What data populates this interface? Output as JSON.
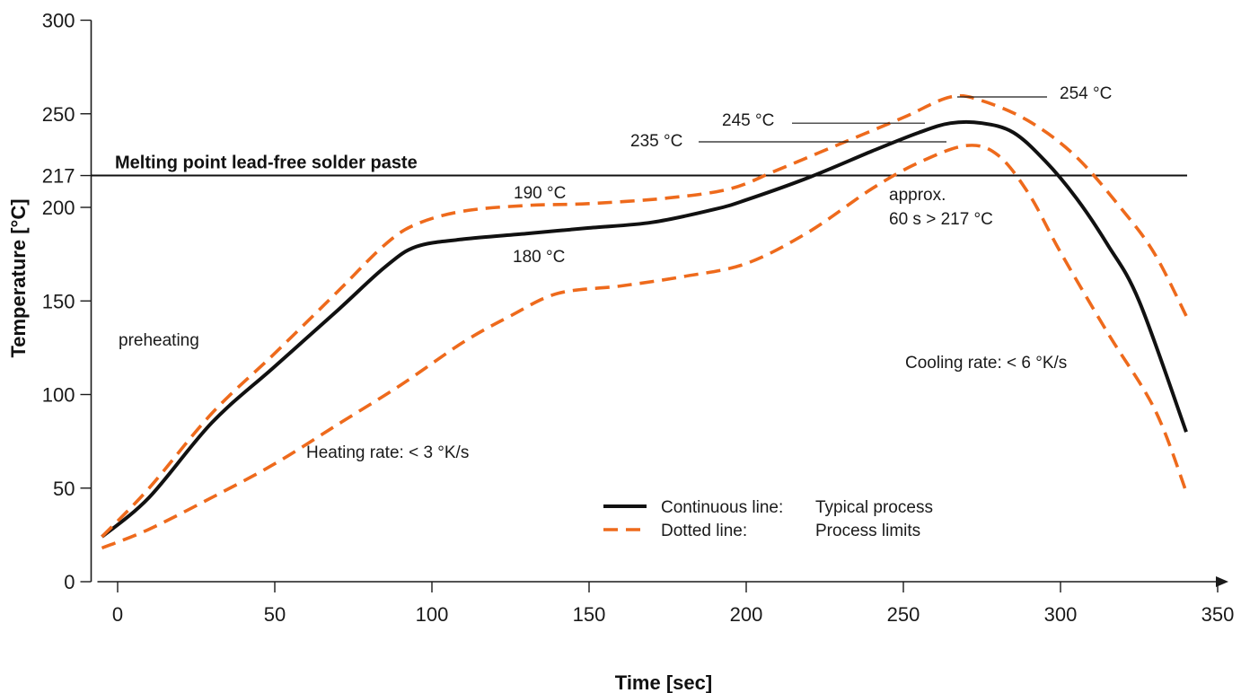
{
  "chart_data": {
    "type": "line",
    "title": "",
    "xlabel": "Time [sec]",
    "ylabel": "Temperature [°C]",
    "xlim": [
      -5,
      350
    ],
    "ylim": [
      0,
      300
    ],
    "x_ticks": [
      0,
      50,
      100,
      150,
      200,
      250,
      300,
      350
    ],
    "y_ticks": [
      0,
      50,
      100,
      150,
      200,
      217,
      250,
      300
    ],
    "grid": false,
    "colors": {
      "typical": "#111111",
      "limits": "#ee6a1c",
      "axis": "#1a1a1a"
    },
    "series": [
      {
        "key": "typical",
        "style": "solid",
        "points": [
          [
            -5,
            24
          ],
          [
            10,
            45
          ],
          [
            30,
            85
          ],
          [
            50,
            115
          ],
          [
            70,
            145
          ],
          [
            85,
            168
          ],
          [
            95,
            179
          ],
          [
            110,
            183
          ],
          [
            130,
            186
          ],
          [
            150,
            189
          ],
          [
            170,
            192
          ],
          [
            190,
            199
          ],
          [
            200,
            204
          ],
          [
            220,
            216
          ],
          [
            240,
            230
          ],
          [
            255,
            240
          ],
          [
            265,
            245
          ],
          [
            275,
            245
          ],
          [
            285,
            240
          ],
          [
            295,
            225
          ],
          [
            305,
            205
          ],
          [
            315,
            180
          ],
          [
            325,
            150
          ],
          [
            340,
            80
          ]
        ]
      },
      {
        "key": "upper",
        "style": "dashed",
        "points": [
          [
            -5,
            24
          ],
          [
            10,
            50
          ],
          [
            30,
            90
          ],
          [
            50,
            122
          ],
          [
            70,
            155
          ],
          [
            85,
            180
          ],
          [
            95,
            191
          ],
          [
            110,
            198
          ],
          [
            130,
            201
          ],
          [
            150,
            202
          ],
          [
            175,
            205
          ],
          [
            195,
            210
          ],
          [
            210,
            220
          ],
          [
            230,
            234
          ],
          [
            250,
            248
          ],
          [
            265,
            259
          ],
          [
            275,
            257
          ],
          [
            290,
            246
          ],
          [
            305,
            227
          ],
          [
            320,
            198
          ],
          [
            330,
            175
          ],
          [
            340,
            142
          ]
        ]
      },
      {
        "key": "lower",
        "style": "dashed",
        "points": [
          [
            -5,
            18
          ],
          [
            10,
            28
          ],
          [
            30,
            45
          ],
          [
            50,
            63
          ],
          [
            70,
            84
          ],
          [
            90,
            105
          ],
          [
            110,
            128
          ],
          [
            125,
            142
          ],
          [
            140,
            154
          ],
          [
            160,
            158
          ],
          [
            180,
            163
          ],
          [
            200,
            170
          ],
          [
            220,
            187
          ],
          [
            240,
            210
          ],
          [
            255,
            224
          ],
          [
            270,
            233
          ],
          [
            280,
            228
          ],
          [
            290,
            207
          ],
          [
            300,
            176
          ],
          [
            315,
            133
          ],
          [
            330,
            92
          ],
          [
            340,
            48
          ]
        ]
      }
    ],
    "reference_line": {
      "y": 217,
      "label": "Melting point lead-free solder paste"
    },
    "annotations": {
      "preheating": "preheating",
      "heating_rate": "Heating rate: < 3 °K/s",
      "cooling_rate": "Cooling rate: < 6 °K/s",
      "label_190": "190 °C",
      "label_180": "180 °C",
      "label_235": "235 °C",
      "label_245": "245 °C",
      "label_254": "254 °C",
      "approx_line1": "approx.",
      "approx_line2": "60 s > 217 °C"
    },
    "legend": {
      "placement": "bottom-center",
      "entries": [
        {
          "key": "typical",
          "label": "Continuous line:",
          "meaning": "Typical process"
        },
        {
          "key": "limits",
          "label": "Dotted line:",
          "meaning": "Process limits"
        }
      ]
    }
  }
}
